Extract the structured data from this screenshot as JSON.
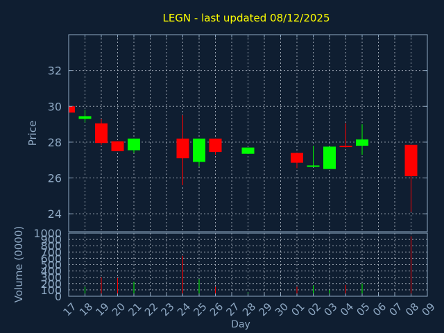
{
  "colors": {
    "background": "#0f1e31",
    "title": "#ffff00",
    "axis_text": "#8fa9c4",
    "frame": "#8fa9c4",
    "grid": "#c8d0da",
    "up": "#00ff00",
    "down": "#ff0000"
  },
  "chart_data": {
    "type": "candlestick",
    "title": "LEGN - last updated 08/12/2025",
    "xlabel": "Day",
    "ylabel": "Price",
    "volume_label": "Volume (0000)",
    "grid": true,
    "ylim": [
      23,
      34
    ],
    "price_ticks": [
      "24",
      "26",
      "28",
      "30",
      "32"
    ],
    "volume_ylim": [
      0,
      1000
    ],
    "volume_ticks": [
      "0",
      "100",
      "200",
      "300",
      "400",
      "500",
      "600",
      "700",
      "800",
      "900",
      "1000"
    ],
    "x_ticks": [
      "17",
      "18",
      "19",
      "20",
      "21",
      "22",
      "23",
      "24",
      "25",
      "26",
      "27",
      "28",
      "29",
      "30",
      "01",
      "02",
      "03",
      "04",
      "05",
      "06",
      "07",
      "08",
      "09"
    ],
    "candles": [
      {
        "day": "17",
        "open": 30.0,
        "close": 29.65,
        "high": 30.0,
        "low": 29.65,
        "volume": 0
      },
      {
        "day": "18",
        "open": 29.3,
        "close": 29.45,
        "high": 29.8,
        "low": 29.1,
        "volume": 150
      },
      {
        "day": "19",
        "open": 29.05,
        "close": 27.95,
        "high": 29.3,
        "low": 27.85,
        "volume": 300
      },
      {
        "day": "20",
        "open": 28.05,
        "close": 27.5,
        "high": 28.05,
        "low": 27.5,
        "volume": 290
      },
      {
        "day": "21",
        "open": 27.55,
        "close": 28.2,
        "high": 28.2,
        "low": 27.4,
        "volume": 230
      },
      {
        "day": "24",
        "open": 28.2,
        "close": 27.1,
        "high": 29.5,
        "low": 25.6,
        "volume": 640
      },
      {
        "day": "25",
        "open": 26.9,
        "close": 28.2,
        "high": 28.2,
        "low": 26.65,
        "volume": 270
      },
      {
        "day": "26",
        "open": 28.2,
        "close": 27.45,
        "high": 28.2,
        "low": 27.3,
        "volume": 150
      },
      {
        "day": "28",
        "open": 27.35,
        "close": 27.7,
        "high": 27.7,
        "low": 27.35,
        "volume": 60
      },
      {
        "day": "01",
        "open": 27.4,
        "close": 26.85,
        "high": 27.4,
        "low": 26.55,
        "volume": 150
      },
      {
        "day": "02",
        "open": 26.65,
        "close": 26.7,
        "high": 27.8,
        "low": 26.6,
        "volume": 170
      },
      {
        "day": "03",
        "open": 26.5,
        "close": 27.75,
        "high": 27.75,
        "low": 26.5,
        "volume": 100
      },
      {
        "day": "04",
        "open": 27.8,
        "close": 27.75,
        "high": 29.05,
        "low": 27.7,
        "volume": 180
      },
      {
        "day": "05",
        "open": 27.8,
        "close": 28.15,
        "high": 29.0,
        "low": 27.3,
        "volume": 200
      },
      {
        "day": "08",
        "open": 27.85,
        "close": 26.1,
        "high": 27.85,
        "low": 24.1,
        "volume": 950
      }
    ]
  }
}
